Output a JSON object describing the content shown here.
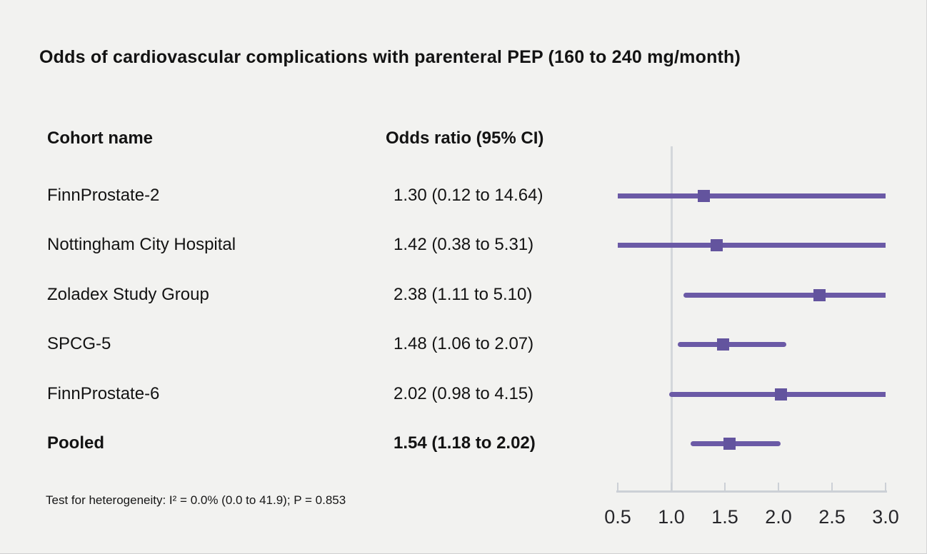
{
  "chart_data": {
    "type": "scatter",
    "subtype": "forest-plot",
    "title": "Odds of cardiovascular complications with parenteral PEP (160 to 240 mg/month)",
    "columns": [
      "Cohort name",
      "Odds ratio (95% CI)"
    ],
    "rows": [
      {
        "name": "FinnProstate-2",
        "label": "1.30 (0.12 to 14.64)",
        "or": 1.3,
        "ci_low": 0.12,
        "ci_high": 14.64,
        "bold": false
      },
      {
        "name": "Nottingham City Hospital",
        "label": "1.42 (0.38 to 5.31)",
        "or": 1.42,
        "ci_low": 0.38,
        "ci_high": 5.31,
        "bold": false
      },
      {
        "name": "Zoladex Study Group",
        "label": "2.38 (1.11 to 5.10)",
        "or": 2.38,
        "ci_low": 1.11,
        "ci_high": 5.1,
        "bold": false
      },
      {
        "name": "SPCG-5",
        "label": "1.48 (1.06 to 2.07)",
        "or": 1.48,
        "ci_low": 1.06,
        "ci_high": 2.07,
        "bold": false
      },
      {
        "name": "FinnProstate-6",
        "label": "2.02 (0.98 to 4.15)",
        "or": 2.02,
        "ci_low": 0.98,
        "ci_high": 4.15,
        "bold": false
      },
      {
        "name": "Pooled",
        "label": "1.54 (1.18 to 2.02)",
        "or": 1.54,
        "ci_low": 1.18,
        "ci_high": 2.02,
        "bold": true
      }
    ],
    "x_axis": {
      "min": 0.5,
      "max": 3.0,
      "ticks": [
        0.5,
        1.0,
        1.5,
        2.0,
        2.5,
        3.0
      ],
      "tick_labels": [
        "0.5",
        "1.0",
        "1.5",
        "2.0",
        "2.5",
        "3.0"
      ],
      "reference_line": 1.0
    },
    "footnote": "Test for heterogeneity: I² = 0.0% (0.0 to 41.9); P = 0.853",
    "legend_position": "none",
    "grid": false,
    "colors": {
      "background": "#f2f2f0",
      "text": "#131313",
      "ci_line": "#6b5aa6",
      "marker": "#63549e",
      "axis": "#ccd0d6",
      "reference_line": "#d4d7db"
    }
  }
}
